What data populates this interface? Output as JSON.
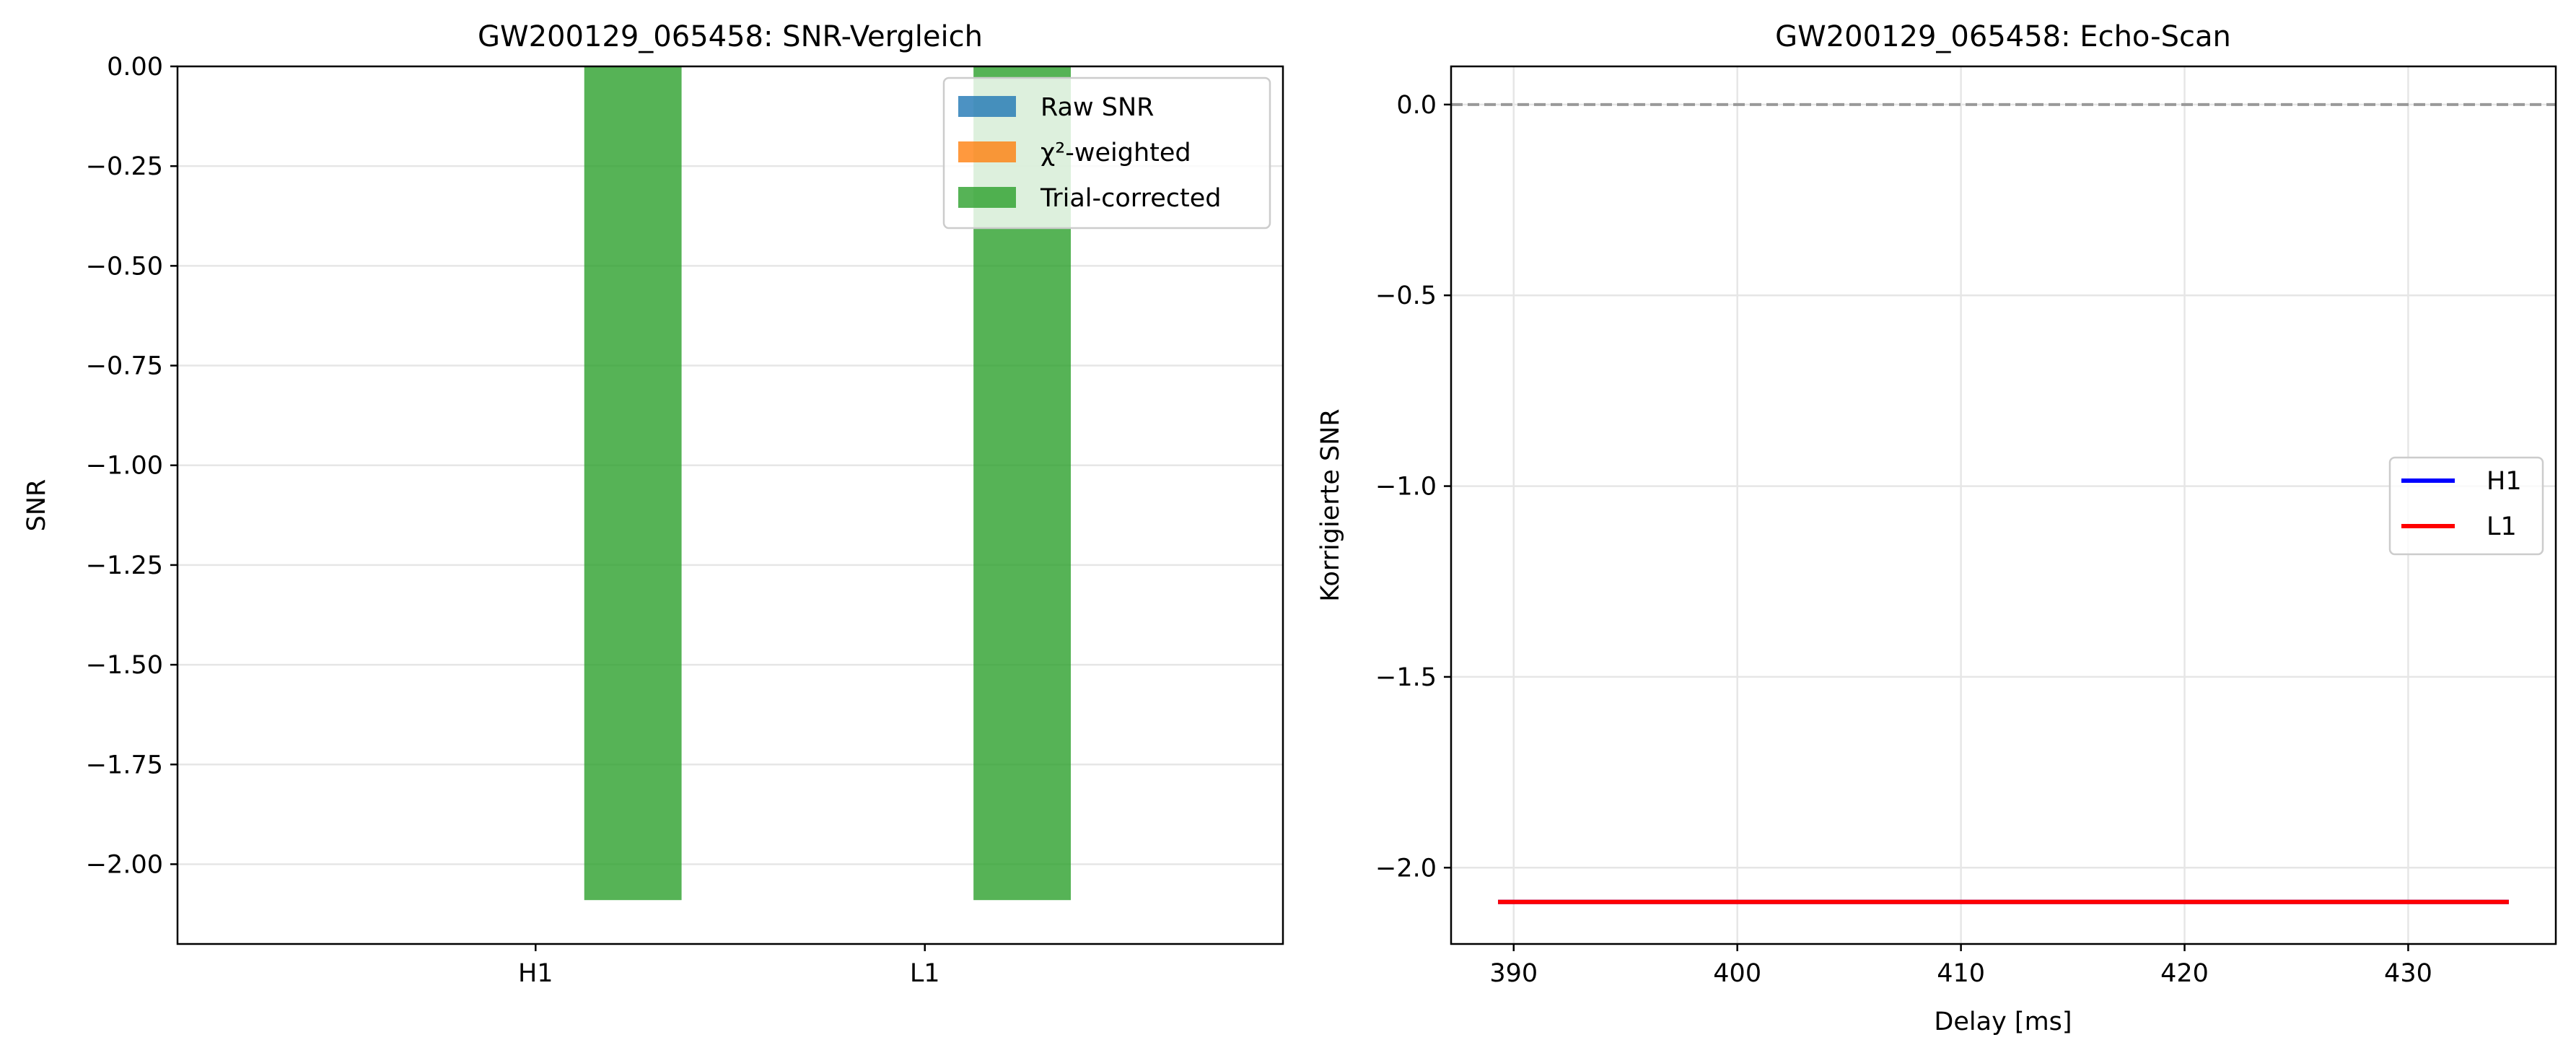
{
  "chart_data": [
    {
      "type": "bar",
      "title": "GW200129_065458: SNR-Vergleich",
      "xlabel": "",
      "ylabel": "SNR",
      "categories": [
        "H1",
        "L1"
      ],
      "ylim": [
        -2.2,
        0.0
      ],
      "yticks": [
        "0.00",
        "−0.25",
        "−0.50",
        "−0.75",
        "−1.00",
        "−1.25",
        "−1.50",
        "−1.75",
        "−2.00"
      ],
      "ytick_values": [
        0.0,
        -0.25,
        -0.5,
        -0.75,
        -1.0,
        -1.25,
        -1.5,
        -1.75,
        -2.0
      ],
      "grid": "y",
      "legend_position": "top-right",
      "series": [
        {
          "name": "Raw SNR",
          "color": "#1f77b4",
          "values": [
            0.0,
            0.0
          ]
        },
        {
          "name": "χ²-weighted",
          "color": "#ff7f0e",
          "values": [
            0.0,
            0.0
          ]
        },
        {
          "name": "Trial-corrected",
          "color": "#2ca02c",
          "values": [
            -2.09,
            -2.09
          ]
        }
      ]
    },
    {
      "type": "line",
      "title": "GW200129_065458: Echo-Scan",
      "xlabel": "Delay [ms]",
      "ylabel": "Korrigierte SNR",
      "xlim": [
        387.2,
        436.6
      ],
      "ylim": [
        -2.2,
        0.1
      ],
      "xticks": [
        "390",
        "400",
        "410",
        "420",
        "430"
      ],
      "xtick_values": [
        390,
        400,
        410,
        420,
        430
      ],
      "yticks": [
        "0.0",
        "−0.5",
        "−1.0",
        "−1.5",
        "−2.0"
      ],
      "ytick_values": [
        0.0,
        -0.5,
        -1.0,
        -1.5,
        -2.0
      ],
      "grid": "both",
      "legend_position": "center-right",
      "reference_line_y": 0.0,
      "series": [
        {
          "name": "H1",
          "color": "#0000ff",
          "x": [
            389.3,
            434.5
          ],
          "y": [
            -2.09,
            -2.09
          ]
        },
        {
          "name": "L1",
          "color": "#ff0000",
          "x": [
            389.3,
            434.5
          ],
          "y": [
            -2.09,
            -2.09
          ]
        }
      ]
    }
  ]
}
